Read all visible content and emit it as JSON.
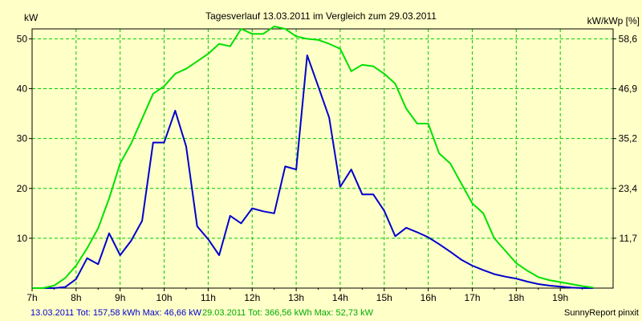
{
  "chart_data": {
    "type": "line",
    "title": "Tagesverlauf 13.03.2011 im Vergleich zum 29.03.2011",
    "ylabel_left": "kW",
    "ylabel_right": "kW/kWp [%]",
    "x_ticks": [
      "7h",
      "8h",
      "9h",
      "10h",
      "11h",
      "12h",
      "13h",
      "14h",
      "15h",
      "16h",
      "17h",
      "18h",
      "19h"
    ],
    "xlim": [
      7.0,
      20.2
    ],
    "ylim": [
      0,
      52
    ],
    "y_ticks_left": [
      10,
      20,
      30,
      40,
      50
    ],
    "y_ticks_right": [
      "11,7",
      "23,4",
      "35,2",
      "46,9",
      "58,6"
    ],
    "grid": true,
    "colors": {
      "background": "#ffffc8",
      "plot_background": "#ffffc8",
      "grid": "#00cc00",
      "series1": "#0000cc",
      "series2": "#00e000",
      "axis": "#000000"
    },
    "series": [
      {
        "name": "13.03.2011",
        "color": "#0000cc",
        "x": [
          7.0,
          7.25,
          7.5,
          7.75,
          8.0,
          8.25,
          8.5,
          8.75,
          9.0,
          9.25,
          9.5,
          9.75,
          10.0,
          10.25,
          10.5,
          10.75,
          11.0,
          11.25,
          11.5,
          11.75,
          12.0,
          12.25,
          12.5,
          12.75,
          13.0,
          13.25,
          13.5,
          13.75,
          14.0,
          14.25,
          14.5,
          14.75,
          15.0,
          15.25,
          15.5,
          15.75,
          16.0,
          16.25,
          16.5,
          16.75,
          17.0,
          17.25,
          17.5,
          17.75,
          18.0,
          18.25,
          18.5,
          18.75,
          19.0,
          19.25,
          19.5,
          19.75
        ],
        "values": [
          0,
          0,
          0,
          0.2,
          1.8,
          6,
          4.8,
          11,
          6.6,
          9.5,
          13.5,
          29.2,
          29.2,
          35.6,
          28.4,
          12.4,
          9.8,
          6.6,
          14.5,
          13,
          16,
          15.4,
          15,
          24.4,
          23.8,
          46.7,
          40.5,
          34.2,
          20.3,
          23.8,
          18.8,
          18.8,
          15.5,
          10.4,
          12.1,
          11.2,
          10.2,
          8.8,
          7.3,
          5.7,
          4.5,
          3.6,
          2.8,
          2.3,
          1.9,
          1.3,
          0.8,
          0.5,
          0.3,
          0.1,
          0,
          0
        ]
      },
      {
        "name": "29.03.2011",
        "color": "#00e000",
        "x": [
          7.0,
          7.25,
          7.5,
          7.75,
          8.0,
          8.25,
          8.5,
          8.75,
          9.0,
          9.25,
          9.5,
          9.75,
          10.0,
          10.25,
          10.5,
          10.75,
          11.0,
          11.25,
          11.5,
          11.75,
          12.0,
          12.25,
          12.5,
          12.75,
          13.0,
          13.25,
          13.5,
          13.75,
          14.0,
          14.25,
          14.5,
          14.75,
          15.0,
          15.25,
          15.5,
          15.75,
          16.0,
          16.25,
          16.5,
          16.75,
          17.0,
          17.25,
          17.5,
          17.75,
          18.0,
          18.25,
          18.5,
          18.75,
          19.0,
          19.25,
          19.5,
          19.75
        ],
        "values": [
          0,
          0,
          0.5,
          2,
          4.5,
          8,
          12,
          18,
          25,
          29,
          34,
          39,
          40.5,
          43,
          44,
          45.5,
          47,
          49,
          48.5,
          52,
          51,
          51,
          52.5,
          52,
          50.5,
          50,
          49.8,
          49,
          48,
          43.5,
          44.8,
          44.5,
          43,
          41,
          36,
          33,
          33,
          27,
          25,
          21,
          17,
          15,
          10,
          7.5,
          5,
          3.5,
          2.2,
          1.6,
          1.2,
          0.8,
          0.4,
          0.1
        ]
      }
    ]
  },
  "footer": {
    "series1_summary": "13.03.2011 Tot: 157,58 kWh Max: 46,66 kW",
    "series2_summary": "29.03.2011 Tot: 366,56 kWh Max: 52,73 kW",
    "credit": "SunnyReport pinxit"
  }
}
